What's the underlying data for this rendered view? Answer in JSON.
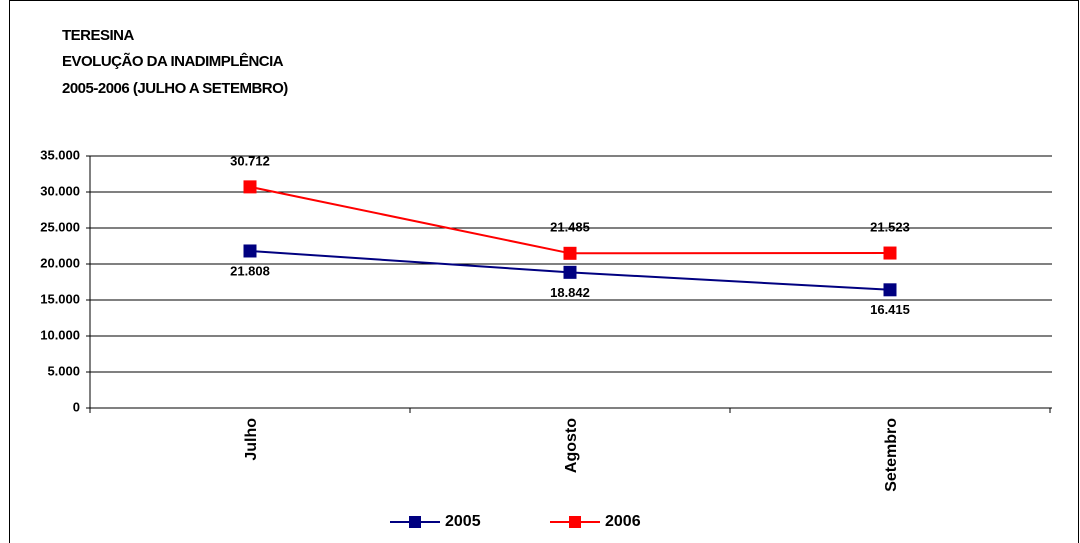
{
  "chart_data": {
    "type": "line",
    "title": [
      "TERESINA",
      "EVOLUÇÃO DA INADIMPLÊNCIA",
      "2005-2006 (JULHO A SETEMBRO)"
    ],
    "categories": [
      "Julho",
      "Agosto",
      "Setembro"
    ],
    "series": [
      {
        "name": "2005",
        "color": "#000080",
        "values": [
          21808,
          18842,
          16415
        ],
        "value_labels": [
          "21.808",
          "18.842",
          "16.415"
        ]
      },
      {
        "name": "2006",
        "color": "#ff0000",
        "values": [
          30712,
          21485,
          21523
        ],
        "value_labels": [
          "30.712",
          "21.485",
          "21.523"
        ]
      }
    ],
    "ylim": [
      0,
      35000
    ],
    "yticks": [
      0,
      {
        "value": 5000,
        "label": "5.000"
      },
      {
        "value": 10000,
        "label": "10.000"
      },
      {
        "value": 15000,
        "label": "15.000"
      },
      {
        "value": 20000,
        "label": "20.000"
      },
      {
        "value": 25000,
        "label": "25.000"
      },
      {
        "value": 30000,
        "label": "30.000"
      },
      {
        "value": 35000,
        "label": "35.000"
      }
    ],
    "grid": true
  }
}
